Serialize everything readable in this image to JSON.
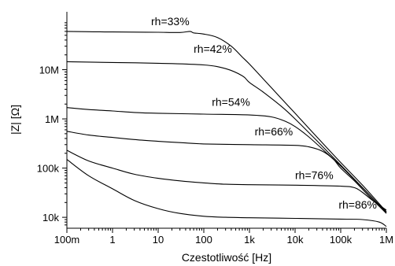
{
  "chart_data": {
    "type": "line",
    "xlabel": "Czestotliwość [Hz]",
    "ylabel": "|Z| [Ω]",
    "x_scale": "log",
    "y_scale": "log",
    "xlim": [
      0.1,
      1000000
    ],
    "ylim": [
      6000,
      150000000
    ],
    "x_ticks": [
      {
        "value": 0.1,
        "label": "100m"
      },
      {
        "value": 1,
        "label": "1"
      },
      {
        "value": 10,
        "label": "10"
      },
      {
        "value": 100,
        "label": "100"
      },
      {
        "value": 1000,
        "label": "1k"
      },
      {
        "value": 10000,
        "label": "10k"
      },
      {
        "value": 100000,
        "label": "100k"
      },
      {
        "value": 1000000,
        "label": "1M"
      }
    ],
    "y_ticks": [
      {
        "value": 10000,
        "label": "10k"
      },
      {
        "value": 100000,
        "label": "100k"
      },
      {
        "value": 1000000,
        "label": "1M"
      },
      {
        "value": 10000000,
        "label": "10M"
      }
    ],
    "grid": false,
    "legend": "none",
    "series": [
      {
        "name": "rh=33%",
        "label_at": {
          "x": 7,
          "y": 80000000
        },
        "x": [
          0.1,
          0.3,
          1,
          3,
          10,
          30,
          50,
          60,
          100,
          200,
          400,
          700,
          1000,
          2000,
          5000,
          10000,
          30000,
          100000,
          300000,
          1000000
        ],
        "y": [
          60000000,
          59000000,
          58500000,
          58000000,
          57500000,
          57000000,
          60000000,
          56000000,
          53000000,
          45000000,
          30000000,
          18000000,
          13000000,
          6500000,
          2600000,
          1300000,
          430000,
          130000,
          45000,
          13000
        ]
      },
      {
        "name": "rh=42%",
        "label_at": {
          "x": 60,
          "y": 22000000
        },
        "x": [
          0.1,
          1,
          10,
          100,
          300,
          700,
          1000,
          2000,
          5000,
          10000,
          30000,
          100000,
          300000,
          1000000
        ],
        "y": [
          14500000,
          14000000,
          13500000,
          12500000,
          10500000,
          7500000,
          5500000,
          3500000,
          1800000,
          1000000,
          360000,
          115000,
          40000,
          12500
        ]
      },
      {
        "name": "rh=54%",
        "label_at": {
          "x": 150,
          "y": 1850000
        },
        "x": [
          0.1,
          0.3,
          1,
          3,
          10,
          100,
          1000,
          3000,
          6000,
          10000,
          20000,
          50000,
          100000,
          300000,
          1000000
        ],
        "y": [
          1700000,
          1550000,
          1450000,
          1350000,
          1300000,
          1250000,
          1200000,
          1100000,
          900000,
          700000,
          430000,
          200000,
          110000,
          40000,
          12500
        ]
      },
      {
        "name": "rh=66%",
        "label_at": {
          "x": 1300,
          "y": 460000
        },
        "x": [
          0.1,
          0.3,
          1,
          3,
          10,
          30,
          100,
          1000,
          10000,
          20000,
          40000,
          70000,
          100000,
          200000,
          400000,
          1000000
        ],
        "y": [
          560000,
          470000,
          420000,
          380000,
          350000,
          330000,
          310000,
          300000,
          290000,
          270000,
          220000,
          150000,
          100000,
          55000,
          28000,
          12000
        ]
      },
      {
        "name": "rh=76%",
        "label_at": {
          "x": 10000,
          "y": 60000
        },
        "x": [
          0.1,
          0.3,
          1,
          3,
          10,
          30,
          100,
          300,
          1000,
          10000,
          100000,
          200000,
          300000,
          500000,
          1000000
        ],
        "y": [
          230000,
          140000,
          100000,
          75000,
          62000,
          55000,
          50000,
          47000,
          46000,
          45000,
          43000,
          40000,
          32000,
          22000,
          14000
        ]
      },
      {
        "name": "rh=86%",
        "label_at": {
          "x": 90000,
          "y": 15000
        },
        "x": [
          0.1,
          0.3,
          1,
          3,
          10,
          30,
          100,
          300,
          1000,
          10000,
          100000,
          300000,
          700000,
          1000000
        ],
        "y": [
          150000,
          70000,
          38000,
          22000,
          15000,
          12000,
          10500,
          10000,
          9800,
          9500,
          9200,
          9000,
          8000,
          6500
        ]
      }
    ]
  }
}
